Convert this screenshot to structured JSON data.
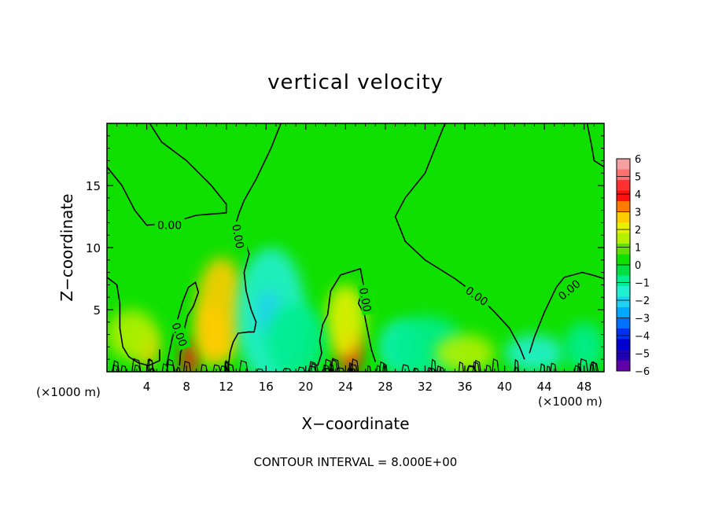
{
  "chart_data": {
    "type": "heatmap",
    "title": "vertical velocity",
    "xlabel": "X−coordinate",
    "ylabel": "Z−coordinate",
    "x_unit_left": "(×1000 m)",
    "x_unit_right": "(×1000 m)",
    "footer": "CONTOUR INTERVAL = 8.000E+00",
    "xlim": [
      0,
      50
    ],
    "ylim": [
      0,
      20
    ],
    "xticks": [
      4,
      8,
      12,
      16,
      20,
      24,
      28,
      32,
      36,
      40,
      44,
      48
    ],
    "yticks": [
      5,
      10,
      15
    ],
    "contour_level": "0.00",
    "colorbar": {
      "labels": [
        "6",
        "5",
        "4",
        "3",
        "2",
        "1",
        "0",
        "−1",
        "−2",
        "−3",
        "−4",
        "−5",
        "−6"
      ],
      "colors": [
        "#f4a0a0",
        "#ff7070",
        "#ff3030",
        "#ff1010",
        "#ff7a00",
        "#ffcc00",
        "#e6f000",
        "#b4f000",
        "#60e000",
        "#10e000",
        "#00e040",
        "#00ee90",
        "#20f0d0",
        "#20d0f0",
        "#00a8ff",
        "#0070ff",
        "#0030f0",
        "#0000d0",
        "#2000b0",
        "#6000a8"
      ]
    },
    "field_blobs": [
      {
        "x": 8.3,
        "z": 1.0,
        "rx": 0.8,
        "rz": 1.5,
        "value": 4.5
      },
      {
        "x": 11.5,
        "z": 5.0,
        "rx": 2.5,
        "rz": 4.2,
        "value": 2.2
      },
      {
        "x": 10.5,
        "z": 3.0,
        "rx": 1.5,
        "rz": 2.5,
        "value": 2.5
      },
      {
        "x": 4.0,
        "z": 2.0,
        "rx": 1.2,
        "rz": 1.5,
        "value": 2.0
      },
      {
        "x": 24.5,
        "z": 1.5,
        "rx": 1.0,
        "rz": 1.8,
        "value": 4.0
      },
      {
        "x": 24.0,
        "z": 4.0,
        "rx": 2.0,
        "rz": 3.0,
        "value": 1.5
      },
      {
        "x": 16.5,
        "z": 4.5,
        "rx": 3.5,
        "rz": 5.5,
        "value": -1.2
      },
      {
        "x": 16.3,
        "z": 4.8,
        "rx": 1.2,
        "rz": 1.8,
        "value": -1.8
      },
      {
        "x": 19.0,
        "z": 2.5,
        "rx": 3.0,
        "rz": 3.0,
        "value": -0.9
      },
      {
        "x": 29.5,
        "z": 2.0,
        "rx": 2.0,
        "rz": 2.0,
        "value": -1.2
      },
      {
        "x": 32.0,
        "z": 2.0,
        "rx": 4.0,
        "rz": 2.5,
        "value": -0.7
      },
      {
        "x": 43.0,
        "z": 1.5,
        "rx": 3.0,
        "rz": 1.5,
        "value": -1.0
      },
      {
        "x": 48.0,
        "z": 2.0,
        "rx": 2.0,
        "rz": 2.0,
        "value": -0.6
      },
      {
        "x": 2.5,
        "z": 3.0,
        "rx": 2.5,
        "rz": 2.0,
        "value": 0.6
      },
      {
        "x": 36.0,
        "z": 1.5,
        "rx": 3.0,
        "rz": 1.5,
        "value": 0.5
      }
    ],
    "contour_lines": [
      [
        [
          4.3,
          20.0
        ],
        [
          5.5,
          18.5
        ],
        [
          8.0,
          17.0
        ],
        [
          10.5,
          15.0
        ],
        [
          12.0,
          13.5
        ],
        [
          12.0,
          12.8
        ],
        [
          9.0,
          12.6
        ],
        [
          6.5,
          12.0
        ],
        [
          4.0,
          11.8
        ],
        [
          2.8,
          13.0
        ],
        [
          1.5,
          15.0
        ],
        [
          0.0,
          16.5
        ]
      ],
      [
        [
          17.5,
          20.0
        ],
        [
          16.5,
          18.0
        ],
        [
          15.0,
          15.5
        ],
        [
          13.8,
          13.8
        ],
        [
          13.3,
          12.8
        ],
        [
          13.0,
          12.0
        ],
        [
          13.2,
          11.0
        ],
        [
          13.8,
          10.0
        ]
      ],
      [
        [
          34.0,
          20.0
        ],
        [
          33.0,
          18.0
        ],
        [
          32.0,
          16.0
        ],
        [
          30.0,
          14.0
        ],
        [
          29.0,
          12.5
        ],
        [
          30.0,
          10.5
        ],
        [
          32.0,
          9.0
        ],
        [
          35.0,
          7.5
        ],
        [
          37.5,
          6.0
        ],
        [
          39.0,
          4.8
        ],
        [
          40.5,
          3.5
        ],
        [
          41.5,
          2.0
        ],
        [
          42.0,
          1.0
        ]
      ],
      [
        [
          48.3,
          20.0
        ],
        [
          48.8,
          18.0
        ],
        [
          49.0,
          17.0
        ],
        [
          50.0,
          16.5
        ]
      ],
      [
        [
          42.5,
          1.5
        ],
        [
          43.0,
          2.8
        ],
        [
          44.0,
          4.8
        ],
        [
          45.2,
          6.8
        ],
        [
          46.0,
          7.6
        ],
        [
          47.8,
          8.0
        ],
        [
          48.8,
          7.8
        ],
        [
          50.0,
          7.5
        ]
      ],
      [
        [
          0.0,
          7.6
        ],
        [
          1.0,
          7.0
        ],
        [
          1.3,
          5.5
        ],
        [
          1.3,
          3.5
        ],
        [
          1.6,
          2.0
        ],
        [
          2.2,
          1.2
        ],
        [
          3.2,
          0.7
        ],
        [
          4.2,
          0.5
        ],
        [
          5.3,
          0.9
        ],
        [
          5.3,
          1.8
        ]
      ],
      [
        [
          6.0,
          0.5
        ],
        [
          6.2,
          1.3
        ],
        [
          6.6,
          2.8
        ],
        [
          7.1,
          4.2
        ],
        [
          7.6,
          5.6
        ],
        [
          8.2,
          6.8
        ],
        [
          8.9,
          7.2
        ],
        [
          9.2,
          6.4
        ],
        [
          8.7,
          5.3
        ],
        [
          8.1,
          4.5
        ],
        [
          7.8,
          3.5
        ],
        [
          7.8,
          2.5
        ],
        [
          7.4,
          1.5
        ],
        [
          7.3,
          0.5
        ]
      ],
      [
        [
          12.2,
          0.4
        ],
        [
          12.4,
          1.6
        ],
        [
          12.7,
          2.4
        ],
        [
          13.2,
          3.1
        ],
        [
          14.2,
          3.2
        ],
        [
          14.8,
          3.2
        ],
        [
          15.0,
          4.0
        ],
        [
          14.5,
          5.0
        ],
        [
          14.0,
          6.5
        ],
        [
          13.8,
          8.0
        ],
        [
          14.3,
          9.5
        ],
        [
          14.0,
          10.2
        ]
      ],
      [
        [
          21.2,
          0.5
        ],
        [
          21.6,
          1.5
        ],
        [
          21.4,
          2.5
        ],
        [
          21.7,
          3.8
        ],
        [
          22.2,
          4.6
        ],
        [
          22.5,
          6.5
        ],
        [
          23.5,
          7.8
        ],
        [
          25.5,
          8.3
        ],
        [
          25.8,
          7.0
        ],
        [
          25.3,
          5.5
        ],
        [
          25.9,
          4.6
        ],
        [
          26.3,
          3.0
        ],
        [
          26.6,
          1.8
        ],
        [
          27.0,
          0.8
        ]
      ]
    ],
    "contour_labels": [
      {
        "text": "0.00",
        "x": 6.3,
        "z": 11.8,
        "angle": 0
      },
      {
        "text": "0.00",
        "x": 13.2,
        "z": 10.9,
        "angle": 80
      },
      {
        "text": "0.00",
        "x": 7.3,
        "z": 3.0,
        "angle": 70
      },
      {
        "text": "0.00",
        "x": 26.0,
        "z": 5.8,
        "angle": 80
      },
      {
        "text": "0.00",
        "x": 37.2,
        "z": 6.1,
        "angle": 35
      },
      {
        "text": "0.00",
        "x": 46.5,
        "z": 6.6,
        "angle": -40
      }
    ]
  }
}
